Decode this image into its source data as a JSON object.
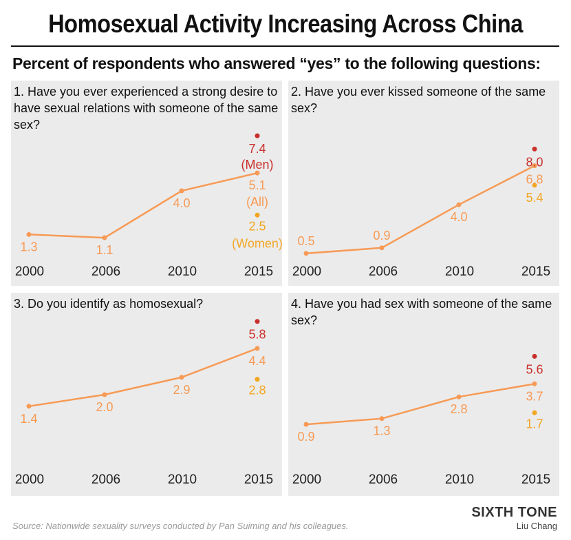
{
  "title": "Homosexual Activity Increasing Across China",
  "subtitle": "Percent of respondents who answered “yes” to the following questions:",
  "source": "Source: Nationwide sexuality surveys conducted by Pan Suiming and his colleagues.",
  "brand": "SIXTH TONE",
  "byline": "Liu Chang",
  "colors": {
    "all": "#f79a55",
    "men": "#c9302c",
    "women": "#f2a623",
    "panel_bg": "#ebebeb"
  },
  "chart_data": [
    {
      "type": "line",
      "question": "1. Have you ever experienced a strong desire to have sexual relations with someone of the same sex?",
      "x": [
        "2000",
        "2006",
        "2010",
        "2015"
      ],
      "series": [
        {
          "name": "All",
          "values": [
            1.3,
            1.1,
            4.0,
            5.1
          ],
          "labels": [
            "1.3",
            "1.1",
            "4.0",
            "5.1"
          ]
        }
      ],
      "men": {
        "name": "Men",
        "value": 7.4,
        "label": "7.4"
      },
      "women": {
        "name": "Women",
        "value": 2.5,
        "label": "2.5"
      },
      "series_label_all": "(All)",
      "series_label_men": "(Men)",
      "series_label_women": "(Women)"
    },
    {
      "type": "line",
      "question": "2. Have you ever kissed someone of the same sex?",
      "x": [
        "2000",
        "2006",
        "2010",
        "2015"
      ],
      "series": [
        {
          "values": [
            0.5,
            0.9,
            4.0,
            6.8
          ],
          "labels": [
            "0.5",
            "0.9",
            "4.0",
            "6.8"
          ]
        }
      ],
      "men": {
        "value": 8.0,
        "label": "8.0"
      },
      "women": {
        "value": 5.4,
        "label": "5.4"
      }
    },
    {
      "type": "line",
      "question": "3. Do you identify as homosexual?",
      "x": [
        "2000",
        "2006",
        "2010",
        "2015"
      ],
      "series": [
        {
          "values": [
            1.4,
            2.0,
            2.9,
            4.4
          ],
          "labels": [
            "1.4",
            "2.0",
            "2.9",
            "4.4"
          ]
        }
      ],
      "men": {
        "value": 5.8,
        "label": "5.8"
      },
      "women": {
        "value": 2.8,
        "label": "2.8"
      }
    },
    {
      "type": "line",
      "question": "4. Have you had sex with someone of the same sex?",
      "x": [
        "2000",
        "2006",
        "2010",
        "2015"
      ],
      "series": [
        {
          "values": [
            0.9,
            1.3,
            2.8,
            3.7
          ],
          "labels": [
            "0.9",
            "1.3",
            "2.8",
            "3.7"
          ]
        }
      ],
      "men": {
        "value": 5.6,
        "label": "5.6"
      },
      "women": {
        "value": 1.7,
        "label": "1.7"
      }
    }
  ]
}
